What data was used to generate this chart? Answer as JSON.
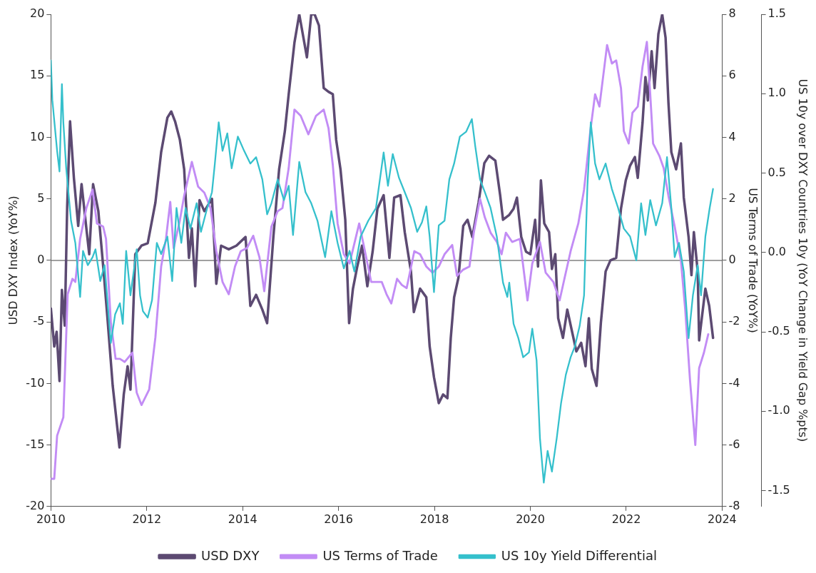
{
  "chart_data": {
    "type": "line",
    "ylabel": "USD DXY Index (YoY%)",
    "y2label": "US Terms of Trade (YoY%)",
    "y3label": "US 10y over DXY Countries 10y (YoY Change in Yield Gap %pts)",
    "xlim": [
      2010,
      2024
    ],
    "xticks": [
      2010,
      2012,
      2014,
      2016,
      2018,
      2020,
      2022,
      2024
    ],
    "ylim": [
      -20,
      20
    ],
    "yticks": [
      -20,
      -15,
      -10,
      -5,
      0,
      5,
      10,
      15,
      20
    ],
    "y2lim": [
      -8,
      8
    ],
    "y2ticks": [
      -8,
      -6,
      -4,
      -2,
      0,
      2,
      4,
      6,
      8
    ],
    "y3lim": [
      -1.6,
      1.5
    ],
    "y3ticks": [
      {
        "value": -1.5,
        "label": "-1.5"
      },
      {
        "value": -1,
        "label": "-1.0"
      },
      {
        "value": -0.5,
        "label": "-0.5"
      },
      {
        "value": 0,
        "label": "0.0"
      },
      {
        "value": 0.5,
        "label": "0.5"
      },
      {
        "value": 1,
        "label": "1.0"
      },
      {
        "value": 1.5,
        "label": "1.5"
      }
    ],
    "grid": false,
    "legend": "bottom",
    "marker": "none",
    "line_style": "solid",
    "ref_lines": [
      {
        "axis": "y",
        "value": 0,
        "color": "#808080"
      }
    ],
    "series": [
      {
        "name": "USD DXY",
        "color": "#5c4a72",
        "x": [
          2010.0,
          2010.07,
          2010.12,
          2010.18,
          2010.23,
          2010.29,
          2010.34,
          2010.4,
          2010.48,
          2010.57,
          2010.64,
          2010.74,
          2010.8,
          2010.88,
          2010.99,
          2011.1,
          2011.18,
          2011.29,
          2011.43,
          2011.52,
          2011.6,
          2011.66,
          2011.76,
          2011.89,
          2012.02,
          2012.18,
          2012.3,
          2012.43,
          2012.51,
          2012.59,
          2012.69,
          2012.78,
          2012.88,
          2012.94,
          2013.01,
          2013.1,
          2013.2,
          2013.36,
          2013.45,
          2013.55,
          2013.71,
          2013.87,
          2014.06,
          2014.16,
          2014.28,
          2014.41,
          2014.51,
          2014.64,
          2014.76,
          2014.88,
          2014.96,
          2015.08,
          2015.18,
          2015.34,
          2015.43,
          2015.5,
          2015.59,
          2015.69,
          2015.79,
          2015.88,
          2015.95,
          2016.04,
          2016.14,
          2016.22,
          2016.3,
          2016.39,
          2016.49,
          2016.6,
          2016.71,
          2016.81,
          2016.94,
          2017.06,
          2017.16,
          2017.29,
          2017.38,
          2017.51,
          2017.57,
          2017.7,
          2017.83,
          2017.9,
          2017.99,
          2018.09,
          2018.18,
          2018.27,
          2018.34,
          2018.41,
          2018.5,
          2018.6,
          2018.69,
          2018.79,
          2018.92,
          2019.04,
          2019.14,
          2019.27,
          2019.37,
          2019.43,
          2019.56,
          2019.65,
          2019.72,
          2019.81,
          2019.91,
          2020.0,
          2020.1,
          2020.16,
          2020.22,
          2020.29,
          2020.39,
          2020.45,
          2020.52,
          2020.58,
          2020.68,
          2020.77,
          2020.87,
          2020.96,
          2021.06,
          2021.15,
          2021.22,
          2021.28,
          2021.38,
          2021.47,
          2021.57,
          2021.67,
          2021.79,
          2021.89,
          2021.99,
          2022.08,
          2022.18,
          2022.24,
          2022.34,
          2022.4,
          2022.45,
          2022.53,
          2022.59,
          2022.67,
          2022.75,
          2022.82,
          2022.88,
          2022.94,
          2023.04,
          2023.14,
          2023.2,
          2023.3,
          2023.36,
          2023.41,
          2023.49,
          2023.52,
          2023.65,
          2023.73,
          2023.81
        ],
        "values": [
          -3.9,
          -7.0,
          -5.8,
          -9.8,
          -2.4,
          -5.3,
          4.4,
          11.3,
          6.7,
          2.8,
          6.2,
          2.6,
          0.5,
          6.2,
          4.0,
          -0.9,
          -4.7,
          -10.2,
          -15.2,
          -10.9,
          -8.6,
          -10.5,
          0.5,
          1.2,
          1.4,
          4.7,
          8.8,
          11.6,
          12.1,
          11.3,
          9.8,
          7.4,
          0.2,
          2.6,
          -2.1,
          4.9,
          4.0,
          5.0,
          -1.9,
          1.2,
          0.9,
          1.2,
          1.9,
          -3.7,
          -2.8,
          -4.0,
          -5.1,
          1.9,
          7.4,
          10.5,
          13.5,
          17.7,
          20,
          16.5,
          20,
          20,
          19.1,
          14.0,
          13.7,
          13.5,
          9.8,
          7.4,
          3.3,
          -5.1,
          -2.3,
          -0.5,
          1.2,
          -2.1,
          0.7,
          4.2,
          5.3,
          0.2,
          5.1,
          5.3,
          2.3,
          -0.9,
          -4.2,
          -2.3,
          -3.0,
          -7.0,
          -9.5,
          -11.6,
          -10.9,
          -11.2,
          -6.3,
          -3.0,
          -1.4,
          2.8,
          3.3,
          1.9,
          4.7,
          7.9,
          8.5,
          8.1,
          5.3,
          3.3,
          3.7,
          4.2,
          5.1,
          1.9,
          0.7,
          0.5,
          3.3,
          -0.5,
          6.5,
          3.0,
          2.3,
          -0.7,
          0.5,
          -4.7,
          -6.3,
          -4.0,
          -5.8,
          -7.4,
          -6.7,
          -8.6,
          -4.7,
          -8.8,
          -10.2,
          -5.1,
          -0.9,
          0.0,
          0.2,
          4.2,
          6.5,
          7.7,
          8.4,
          6.7,
          11.2,
          14.9,
          13.0,
          17.0,
          14.0,
          18.4,
          20,
          18.1,
          12.8,
          8.8,
          7.4,
          9.5,
          5.1,
          1.9,
          -1.2,
          2.3,
          -0.9,
          -6.5,
          -2.3,
          -3.7,
          -6.3
        ]
      },
      {
        "name": "US Terms of Trade",
        "color": "#c28cf5",
        "axis": "y2",
        "x": [
          2010.0,
          2010.07,
          2010.13,
          2010.26,
          2010.35,
          2010.45,
          2010.51,
          2010.61,
          2010.74,
          2010.87,
          2010.96,
          2011.09,
          2011.15,
          2011.25,
          2011.35,
          2011.44,
          2011.54,
          2011.7,
          2011.79,
          2011.89,
          2012.05,
          2012.18,
          2012.3,
          2012.4,
          2012.49,
          2012.56,
          2012.69,
          2012.78,
          2012.94,
          2013.07,
          2013.2,
          2013.33,
          2013.45,
          2013.58,
          2013.71,
          2013.84,
          2013.96,
          2014.09,
          2014.22,
          2014.35,
          2014.45,
          2014.6,
          2014.73,
          2014.83,
          2014.96,
          2015.08,
          2015.21,
          2015.37,
          2015.53,
          2015.69,
          2015.79,
          2015.88,
          2015.98,
          2016.11,
          2016.23,
          2016.43,
          2016.55,
          2016.68,
          2016.78,
          2016.9,
          2017.0,
          2017.1,
          2017.22,
          2017.32,
          2017.42,
          2017.58,
          2017.7,
          2017.83,
          2017.96,
          2018.09,
          2018.21,
          2018.37,
          2018.47,
          2018.6,
          2018.73,
          2018.82,
          2018.95,
          2019.05,
          2019.17,
          2019.3,
          2019.4,
          2019.49,
          2019.62,
          2019.78,
          2019.94,
          2020.04,
          2020.2,
          2020.32,
          2020.48,
          2020.61,
          2020.71,
          2020.84,
          2021.0,
          2021.12,
          2021.25,
          2021.35,
          2021.44,
          2021.6,
          2021.7,
          2021.79,
          2021.89,
          2021.95,
          2022.05,
          2022.13,
          2022.24,
          2022.34,
          2022.43,
          2022.5,
          2022.56,
          2022.69,
          2022.78,
          2022.88,
          2023.01,
          2023.14,
          2023.23,
          2023.33,
          2023.44,
          2023.52,
          2023.62,
          2023.71
        ],
        "values": [
          -7.1,
          -7.1,
          -5.7,
          -5.1,
          -1.1,
          -0.6,
          -0.7,
          0.7,
          1.7,
          2.3,
          1.2,
          1.1,
          0.7,
          -2.0,
          -3.2,
          -3.2,
          -3.3,
          -3.0,
          -4.3,
          -4.7,
          -4.2,
          -2.5,
          -0.2,
          0.7,
          1.9,
          0.4,
          1.3,
          2.1,
          3.2,
          2.4,
          2.2,
          1.7,
          0.3,
          -0.7,
          -1.1,
          -0.2,
          0.3,
          0.4,
          0.8,
          0.1,
          -1.0,
          1.1,
          1.6,
          1.7,
          3.0,
          4.9,
          4.7,
          4.1,
          4.7,
          4.9,
          4.3,
          3.1,
          1.2,
          0.2,
          -0.1,
          1.2,
          0.3,
          -0.7,
          -0.7,
          -0.7,
          -1.1,
          -1.4,
          -0.6,
          -0.8,
          -0.9,
          0.3,
          0.2,
          -0.2,
          -0.4,
          -0.2,
          0.2,
          0.5,
          -0.5,
          -0.3,
          -0.2,
          0.9,
          2.0,
          1.4,
          0.9,
          0.6,
          0.2,
          0.9,
          0.6,
          0.7,
          -1.3,
          -0.1,
          0.6,
          -0.4,
          -0.7,
          -1.3,
          -0.6,
          0.3,
          1.2,
          2.3,
          4.2,
          5.4,
          5.0,
          7.0,
          6.4,
          6.5,
          5.6,
          4.2,
          3.8,
          4.8,
          5.0,
          6.3,
          7.1,
          5.4,
          3.8,
          3.4,
          3.0,
          2.1,
          1.1,
          0.0,
          -1.6,
          -3.9,
          -6.0,
          -3.5,
          -3.0,
          -2.4
        ]
      },
      {
        "name": "US 10y Yield Differential",
        "color": "#35c0cc",
        "axis": "y3",
        "x": [
          2010.0,
          2010.03,
          2010.13,
          2010.18,
          2010.23,
          2010.26,
          2010.32,
          2010.42,
          2010.51,
          2010.61,
          2010.67,
          2010.77,
          2010.87,
          2010.93,
          2011.03,
          2011.12,
          2011.25,
          2011.34,
          2011.44,
          2011.5,
          2011.57,
          2011.66,
          2011.79,
          2011.86,
          2011.92,
          2012.02,
          2012.11,
          2012.21,
          2012.3,
          2012.43,
          2012.53,
          2012.62,
          2012.72,
          2012.81,
          2012.91,
          2013.04,
          2013.13,
          2013.26,
          2013.36,
          2013.42,
          2013.5,
          2013.58,
          2013.68,
          2013.77,
          2013.9,
          2014.03,
          2014.16,
          2014.28,
          2014.41,
          2014.51,
          2014.6,
          2014.73,
          2014.86,
          2014.96,
          2015.05,
          2015.18,
          2015.31,
          2015.43,
          2015.56,
          2015.72,
          2015.85,
          2015.98,
          2016.11,
          2016.23,
          2016.33,
          2016.46,
          2016.62,
          2016.78,
          2016.94,
          2017.03,
          2017.13,
          2017.26,
          2017.38,
          2017.51,
          2017.64,
          2017.74,
          2017.83,
          2017.9,
          2017.99,
          2018.09,
          2018.21,
          2018.31,
          2018.41,
          2018.53,
          2018.66,
          2018.78,
          2018.85,
          2018.95,
          2019.05,
          2019.17,
          2019.3,
          2019.43,
          2019.52,
          2019.56,
          2019.65,
          2019.75,
          2019.85,
          2019.97,
          2020.04,
          2020.13,
          2020.2,
          2020.28,
          2020.36,
          2020.45,
          2020.55,
          2020.64,
          2020.74,
          2020.84,
          2020.93,
          2021.03,
          2021.12,
          2021.19,
          2021.26,
          2021.35,
          2021.44,
          2021.57,
          2021.7,
          2021.83,
          2021.95,
          2022.08,
          2022.21,
          2022.31,
          2022.4,
          2022.5,
          2022.62,
          2022.75,
          2022.85,
          2022.94,
          2023.01,
          2023.1,
          2023.2,
          2023.3,
          2023.39,
          2023.49,
          2023.56,
          2023.65,
          2023.74,
          2023.81
        ],
        "values": [
          1.21,
          0.96,
          0.64,
          0.51,
          1.06,
          0.82,
          0.53,
          0.2,
          0.06,
          -0.28,
          0.01,
          -0.08,
          -0.03,
          0.02,
          -0.18,
          -0.08,
          -0.57,
          -0.39,
          -0.32,
          -0.45,
          0.01,
          -0.27,
          0.02,
          -0.27,
          -0.37,
          -0.41,
          -0.3,
          0.06,
          -0.01,
          0.1,
          -0.18,
          0.28,
          0.06,
          0.28,
          0.15,
          0.31,
          0.13,
          0.28,
          0.38,
          0.56,
          0.82,
          0.64,
          0.75,
          0.53,
          0.73,
          0.64,
          0.56,
          0.6,
          0.46,
          0.24,
          0.31,
          0.46,
          0.33,
          0.42,
          0.11,
          0.57,
          0.38,
          0.31,
          0.2,
          -0.03,
          0.26,
          0.06,
          -0.1,
          0.01,
          -0.12,
          0.1,
          0.2,
          0.28,
          0.63,
          0.42,
          0.62,
          0.47,
          0.38,
          0.28,
          0.13,
          0.19,
          0.29,
          0.1,
          -0.25,
          0.17,
          0.2,
          0.46,
          0.56,
          0.73,
          0.76,
          0.84,
          0.67,
          0.46,
          0.38,
          0.28,
          0.1,
          -0.19,
          -0.28,
          -0.19,
          -0.45,
          -0.54,
          -0.66,
          -0.63,
          -0.48,
          -0.68,
          -1.17,
          -1.45,
          -1.25,
          -1.38,
          -1.17,
          -0.95,
          -0.77,
          -0.66,
          -0.59,
          -0.46,
          -0.27,
          0.42,
          0.82,
          0.56,
          0.46,
          0.56,
          0.4,
          0.28,
          0.15,
          0.1,
          -0.05,
          0.31,
          0.11,
          0.33,
          0.17,
          0.31,
          0.6,
          0.28,
          -0.03,
          0.06,
          -0.12,
          -0.54,
          -0.27,
          -0.08,
          -0.27,
          0.1,
          0.28,
          0.4
        ]
      }
    ]
  }
}
